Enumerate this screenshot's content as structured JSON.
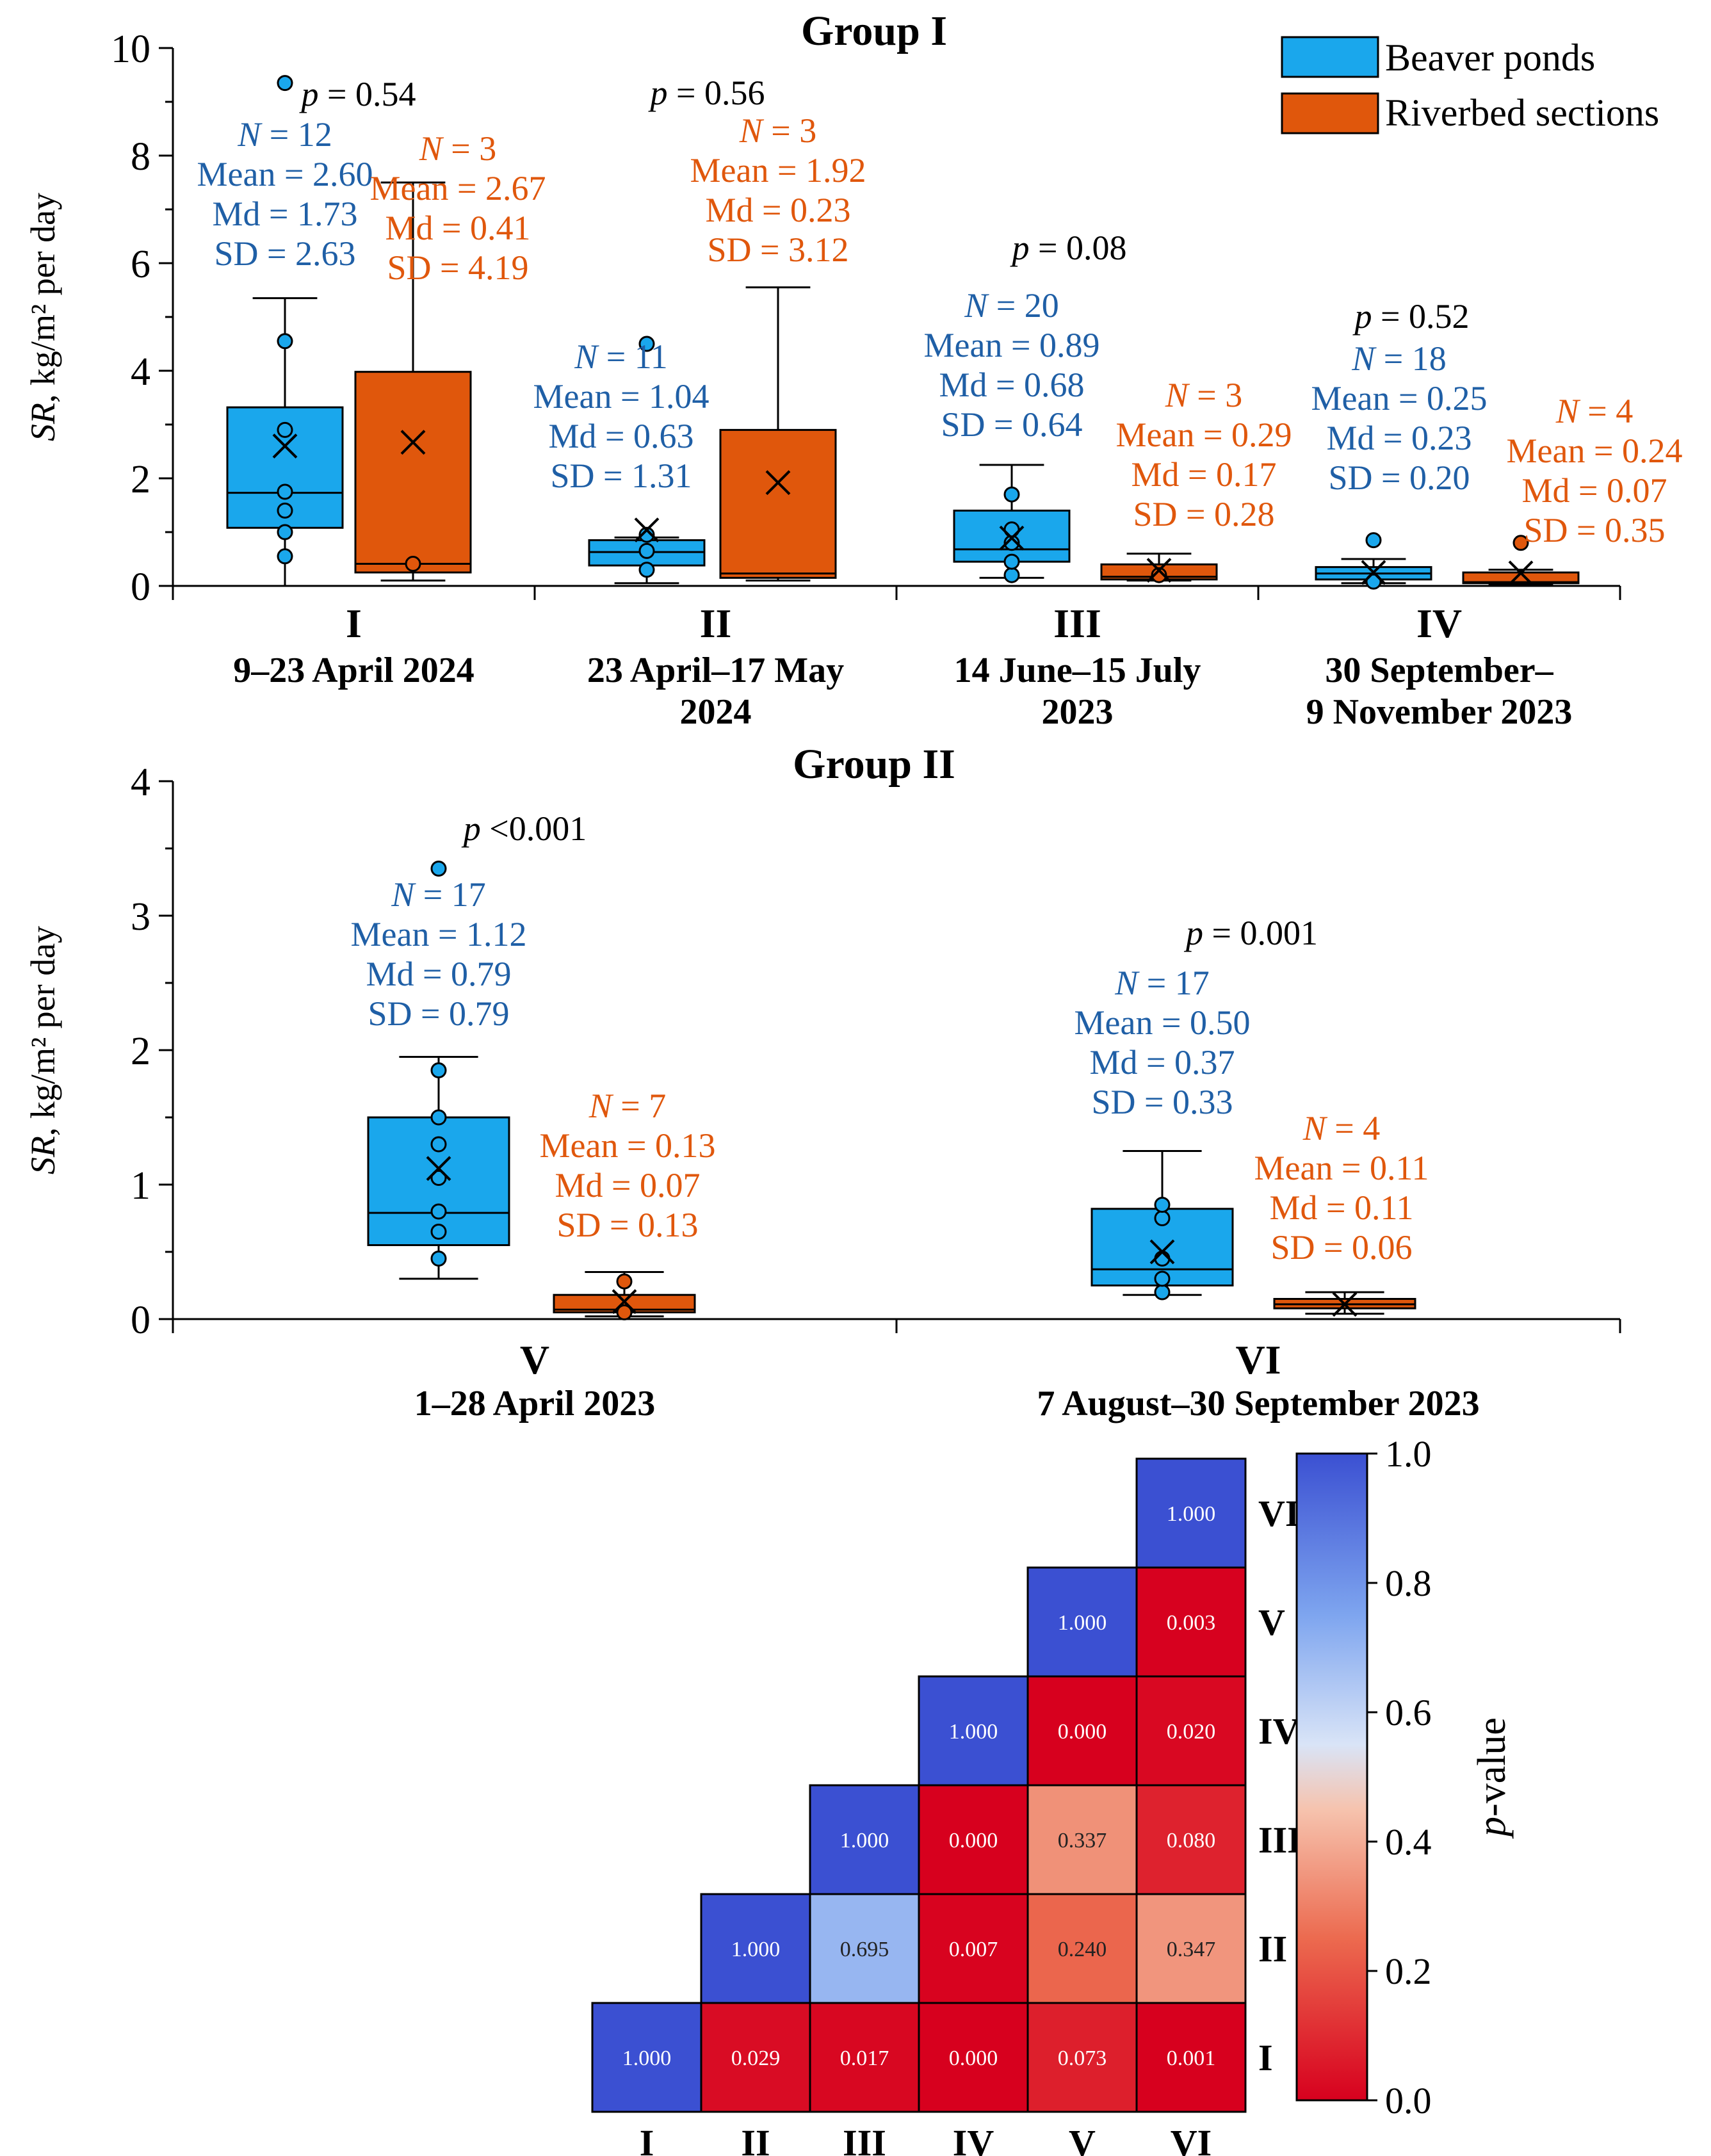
{
  "colors": {
    "beaver": "#1aa7ec",
    "riverbed": "#e0570c",
    "beaver_text": "#1f5fa6",
    "riverbed_text": "#e0570c",
    "axis": "#000000"
  },
  "legend": {
    "beaver": "Beaver ponds",
    "riverbed": "Riverbed sections"
  },
  "chart_data": [
    {
      "type": "box",
      "title": "Group I",
      "ylabel_symbol": "SR",
      "ylabel_rest": ", kg/m² per day",
      "ylim": [
        0,
        10
      ],
      "yticks": [
        "0",
        "2",
        "4",
        "6",
        "8",
        "10"
      ],
      "periods": [
        {
          "label": "I",
          "dates": [
            "9–23 April 2024"
          ],
          "p_label": "p",
          "p_value": " = 0.54",
          "beaver": {
            "q1": 1.08,
            "median": 1.73,
            "q3": 3.32,
            "whisker_low": 0.0,
            "whisker_high": 5.35,
            "mean": 2.6,
            "points": [
              0.55,
              1.0,
              1.4,
              1.75,
              2.9,
              4.55,
              9.35
            ],
            "stats": {
              "n": " = 12",
              "mean": "Mean = 2.60",
              "md": "Md = 1.73",
              "sd": "SD = 2.63"
            }
          },
          "riverbed": {
            "q1": 0.25,
            "median": 0.41,
            "q3": 3.98,
            "whisker_low": 0.1,
            "whisker_high": 7.5,
            "mean": 2.67,
            "points": [
              0.41
            ],
            "stats": {
              "n": " = 3",
              "mean": "Mean = 2.67",
              "md": "Md = 0.41",
              "sd": "SD = 4.19"
            }
          }
        },
        {
          "label": "II",
          "dates": [
            "23 April–17 May",
            "2024"
          ],
          "p_label": "p",
          "p_value": " = 0.56",
          "beaver": {
            "q1": 0.38,
            "median": 0.63,
            "q3": 0.85,
            "whisker_low": 0.05,
            "whisker_high": 0.9,
            "mean": 1.04,
            "points": [
              0.3,
              0.65,
              0.95,
              4.5
            ],
            "stats": {
              "n": " = 11",
              "mean": "Mean = 1.04",
              "md": "Md = 0.63",
              "sd": "SD = 1.31"
            }
          },
          "riverbed": {
            "q1": 0.15,
            "median": 0.23,
            "q3": 2.9,
            "whisker_low": 0.1,
            "whisker_high": 5.55,
            "mean": 1.92,
            "points": [],
            "stats": {
              "n": " = 3",
              "mean": "Mean = 1.92",
              "md": "Md = 0.23",
              "sd": "SD = 3.12"
            }
          }
        },
        {
          "label": "III",
          "dates": [
            "14 June–15 July",
            "2023"
          ],
          "p_label": "p",
          "p_value": " = 0.08",
          "beaver": {
            "q1": 0.45,
            "median": 0.68,
            "q3": 1.4,
            "whisker_low": 0.15,
            "whisker_high": 2.25,
            "mean": 0.89,
            "points": [
              0.2,
              0.45,
              0.8,
              1.05,
              1.7
            ],
            "stats": {
              "n": " = 20",
              "mean": "Mean = 0.89",
              "md": "Md = 0.68",
              "sd": "SD = 0.64"
            }
          },
          "riverbed": {
            "q1": 0.12,
            "median": 0.17,
            "q3": 0.4,
            "whisker_low": 0.1,
            "whisker_high": 0.6,
            "mean": 0.29,
            "points": [
              0.2
            ],
            "stats": {
              "n": " = 3",
              "mean": "Mean = 0.29",
              "md": "Md = 0.17",
              "sd": "SD = 0.28"
            }
          }
        },
        {
          "label": "IV",
          "dates": [
            "30 September–",
            "9 November 2023"
          ],
          "p_label": "p",
          "p_value": " = 0.52",
          "beaver": {
            "q1": 0.12,
            "median": 0.23,
            "q3": 0.35,
            "whisker_low": 0.05,
            "whisker_high": 0.5,
            "mean": 0.25,
            "points": [
              0.08,
              0.85
            ],
            "stats": {
              "n": " = 18",
              "mean": "Mean = 0.25",
              "md": "Md = 0.23",
              "sd": "SD = 0.20"
            }
          },
          "riverbed": {
            "q1": 0.05,
            "median": 0.07,
            "q3": 0.25,
            "whisker_low": 0.02,
            "whisker_high": 0.3,
            "mean": 0.24,
            "points": [
              0.8
            ],
            "stats": {
              "n": " = 4",
              "mean": "Mean = 0.24",
              "md": "Md = 0.07",
              "sd": "SD = 0.35"
            }
          }
        }
      ]
    },
    {
      "type": "box",
      "title": "Group II",
      "ylabel_symbol": "SR",
      "ylabel_rest": ", kg/m² per day",
      "ylim": [
        0,
        4
      ],
      "yticks": [
        "0",
        "1",
        "2",
        "3",
        "4"
      ],
      "periods": [
        {
          "label": "V",
          "dates": [
            "1–28 April 2023"
          ],
          "p_label": "p",
          "p_value": " <0.001",
          "beaver": {
            "q1": 0.55,
            "median": 0.79,
            "q3": 1.5,
            "whisker_low": 0.3,
            "whisker_high": 1.95,
            "mean": 1.12,
            "points": [
              0.45,
              0.65,
              0.8,
              1.05,
              1.3,
              1.5,
              1.85,
              3.35
            ],
            "stats": {
              "n": " = 17",
              "mean": "Mean = 1.12",
              "md": "Md = 0.79",
              "sd": "SD = 0.79"
            }
          },
          "riverbed": {
            "q1": 0.05,
            "median": 0.07,
            "q3": 0.18,
            "whisker_low": 0.02,
            "whisker_high": 0.35,
            "mean": 0.13,
            "points": [
              0.05,
              0.28
            ],
            "stats": {
              "n": " = 7",
              "mean": "Mean = 0.13",
              "md": "Md = 0.07",
              "sd": "SD = 0.13"
            }
          }
        },
        {
          "label": "VI",
          "dates": [
            "7 August–30 September 2023"
          ],
          "p_label": "p",
          "p_value": " = 0.001",
          "beaver": {
            "q1": 0.25,
            "median": 0.37,
            "q3": 0.82,
            "whisker_low": 0.18,
            "whisker_high": 1.25,
            "mean": 0.5,
            "points": [
              0.2,
              0.3,
              0.45,
              0.75,
              0.85
            ],
            "stats": {
              "n": " = 17",
              "mean": "Mean = 0.50",
              "md": "Md = 0.37",
              "sd": "SD = 0.33"
            }
          },
          "riverbed": {
            "q1": 0.08,
            "median": 0.11,
            "q3": 0.15,
            "whisker_low": 0.04,
            "whisker_high": 0.2,
            "mean": 0.11,
            "points": [],
            "stats": {
              "n": " = 4",
              "mean": "Mean = 0.11",
              "md": "Md = 0.11",
              "sd": "SD = 0.06"
            }
          }
        }
      ]
    },
    {
      "type": "heatmap",
      "labels": [
        "I",
        "II",
        "III",
        "IV",
        "V",
        "VI"
      ],
      "colorbar_label_symbol": "p",
      "colorbar_label_rest": "-value",
      "colorbar_ticks": [
        "0.0",
        "0.2",
        "0.4",
        "0.6",
        "0.8",
        "1.0"
      ],
      "cells": [
        {
          "row": "VI",
          "col": "VI",
          "value": 1.0,
          "text": "1.000"
        },
        {
          "row": "V",
          "col": "V",
          "value": 1.0,
          "text": "1.000"
        },
        {
          "row": "V",
          "col": "VI",
          "value": 0.003,
          "text": "0.003"
        },
        {
          "row": "IV",
          "col": "IV",
          "value": 1.0,
          "text": "1.000"
        },
        {
          "row": "IV",
          "col": "V",
          "value": 0.0,
          "text": "0.000"
        },
        {
          "row": "IV",
          "col": "VI",
          "value": 0.02,
          "text": "0.020"
        },
        {
          "row": "III",
          "col": "III",
          "value": 1.0,
          "text": "1.000"
        },
        {
          "row": "III",
          "col": "IV",
          "value": 0.0,
          "text": "0.000"
        },
        {
          "row": "III",
          "col": "V",
          "value": 0.337,
          "text": "0.337"
        },
        {
          "row": "III",
          "col": "VI",
          "value": 0.08,
          "text": "0.080"
        },
        {
          "row": "II",
          "col": "II",
          "value": 1.0,
          "text": "1.000"
        },
        {
          "row": "II",
          "col": "III",
          "value": 0.695,
          "text": "0.695"
        },
        {
          "row": "II",
          "col": "IV",
          "value": 0.007,
          "text": "0.007"
        },
        {
          "row": "II",
          "col": "V",
          "value": 0.24,
          "text": "0.240"
        },
        {
          "row": "II",
          "col": "VI",
          "value": 0.347,
          "text": "0.347"
        },
        {
          "row": "I",
          "col": "I",
          "value": 1.0,
          "text": "1.000"
        },
        {
          "row": "I",
          "col": "II",
          "value": 0.029,
          "text": "0.029"
        },
        {
          "row": "I",
          "col": "III",
          "value": 0.017,
          "text": "0.017"
        },
        {
          "row": "I",
          "col": "IV",
          "value": 0.0,
          "text": "0.000"
        },
        {
          "row": "I",
          "col": "V",
          "value": 0.073,
          "text": "0.073"
        },
        {
          "row": "I",
          "col": "VI",
          "value": 0.001,
          "text": "0.001"
        }
      ]
    }
  ]
}
